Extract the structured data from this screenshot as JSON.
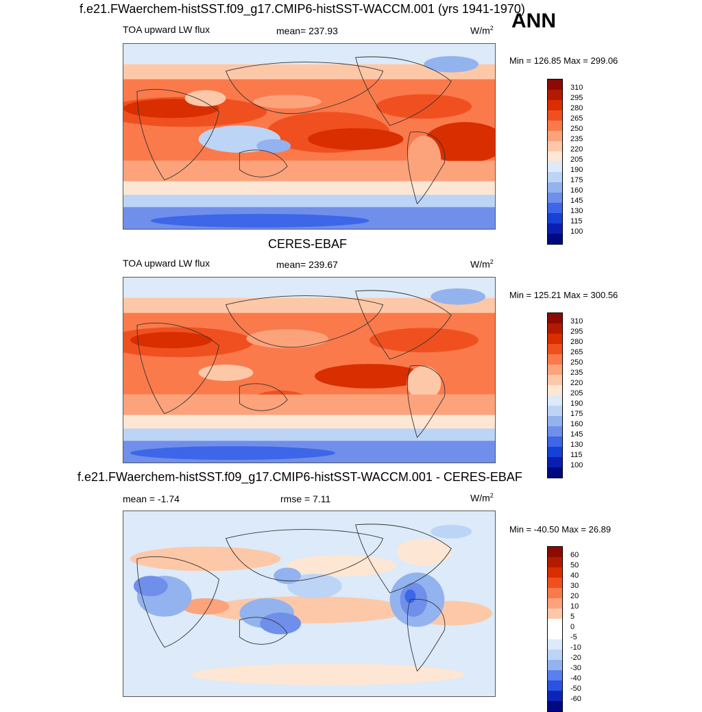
{
  "season": "ANN",
  "panels": [
    {
      "title": "f.e21.FWaerchem-histSST.f09_g17.CMIP6-histSST-WACCM.001 (yrs 1941-1970)",
      "left_label": "TOA upward LW flux",
      "center_label": "mean= 237.93",
      "unit": "W/m",
      "unit_sup": "2",
      "minmax": "Min = 126.85 Max = 299.06",
      "colorbar_labels": [
        "310",
        "295",
        "280",
        "265",
        "250",
        "235",
        "220",
        "205",
        "190",
        "175",
        "160",
        "145",
        "130",
        "115",
        "100"
      ],
      "colorbar_colors": [
        "#8c0a00",
        "#b31a00",
        "#d92e00",
        "#f0501f",
        "#fa7a4b",
        "#fca37c",
        "#fdc8a8",
        "#fde6d3",
        "#dceaf9",
        "#bcd4f5",
        "#93b3ef",
        "#6f8fea",
        "#3d66e8",
        "#1741d6",
        "#0a1fb0",
        "#000a80"
      ]
    },
    {
      "title": "CERES-EBAF",
      "left_label": "TOA upward LW flux",
      "center_label": "mean= 239.67",
      "unit": "W/m",
      "unit_sup": "2",
      "minmax": "Min = 125.21 Max = 300.56",
      "colorbar_labels": [
        "310",
        "295",
        "280",
        "265",
        "250",
        "235",
        "220",
        "205",
        "190",
        "175",
        "160",
        "145",
        "130",
        "115",
        "100"
      ],
      "colorbar_colors": [
        "#8c0a00",
        "#b31a00",
        "#d92e00",
        "#f0501f",
        "#fa7a4b",
        "#fca37c",
        "#fdc8a8",
        "#fde6d3",
        "#dceaf9",
        "#bcd4f5",
        "#93b3ef",
        "#6f8fea",
        "#3d66e8",
        "#1741d6",
        "#0a1fb0",
        "#000a80"
      ]
    },
    {
      "title": "f.e21.FWaerchem-histSST.f09_g17.CMIP6-histSST-WACCM.001 - CERES-EBAF",
      "left_label": "mean =  -1.74",
      "center_label": "rmse =   7.11",
      "unit": "W/m",
      "unit_sup": "2",
      "minmax": "Min = -40.50 Max =  26.89",
      "colorbar_labels": [
        "60",
        "50",
        "40",
        "30",
        "20",
        "10",
        "5",
        "0",
        "-5",
        "-10",
        "-20",
        "-30",
        "-40",
        "-50",
        "-60"
      ],
      "colorbar_colors": [
        "#8c0a00",
        "#b31a00",
        "#d92e00",
        "#f0501f",
        "#fa7a4b",
        "#fca37c",
        "#fdc8a8",
        "#ffffff",
        "#ffffff",
        "#dceaf9",
        "#bcd4f5",
        "#93b3ef",
        "#5b7ff0",
        "#2b52e0",
        "#0a26b8",
        "#000a80"
      ]
    }
  ],
  "chart_data": [
    {
      "type": "heatmap",
      "title": "f.e21.FWaerchem-histSST.f09_g17.CMIP6-histSST-WACCM.001 (yrs 1941-1970)",
      "variable": "TOA upward LW flux",
      "units": "W/m2",
      "mean": 237.93,
      "min": 126.85,
      "max": 299.06,
      "contour_levels": [
        100,
        115,
        130,
        145,
        160,
        175,
        190,
        205,
        220,
        235,
        250,
        265,
        280,
        295,
        310
      ]
    },
    {
      "type": "heatmap",
      "title": "CERES-EBAF",
      "variable": "TOA upward LW flux",
      "units": "W/m2",
      "mean": 239.67,
      "min": 125.21,
      "max": 300.56,
      "contour_levels": [
        100,
        115,
        130,
        145,
        160,
        175,
        190,
        205,
        220,
        235,
        250,
        265,
        280,
        295,
        310
      ]
    },
    {
      "type": "heatmap",
      "title": "f.e21.FWaerchem-histSST.f09_g17.CMIP6-histSST-WACCM.001 - CERES-EBAF",
      "units": "W/m2",
      "mean": -1.74,
      "rmse": 7.11,
      "min": -40.5,
      "max": 26.89,
      "contour_levels": [
        -60,
        -50,
        -40,
        -30,
        -20,
        -10,
        -5,
        0,
        5,
        10,
        20,
        30,
        40,
        50,
        60
      ]
    }
  ]
}
